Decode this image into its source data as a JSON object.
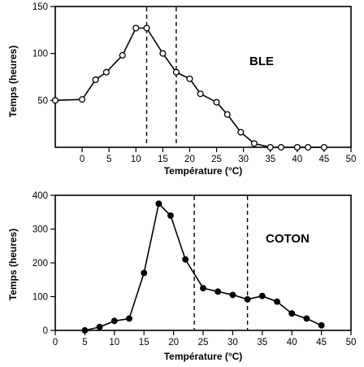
{
  "chart_data": [
    {
      "type": "line",
      "id": "ble",
      "panel_label": "BLE",
      "xlabel": "Température (°C)",
      "ylabel": "Temps (heures)",
      "xlim": [
        -5,
        50
      ],
      "ylim": [
        0,
        150
      ],
      "xticks": [
        0,
        5,
        10,
        15,
        20,
        25,
        30,
        35,
        40,
        45,
        50
      ],
      "yticks": [
        50,
        100,
        150
      ],
      "marker": "open-circle",
      "series": [
        {
          "x": [
            -5,
            0,
            2.5,
            4.5,
            7.5,
            10,
            12,
            15,
            17.5,
            20,
            22,
            25,
            27,
            29.5,
            32,
            35,
            37,
            40,
            42,
            45
          ],
          "y": [
            50,
            51,
            72,
            80,
            98,
            127,
            127,
            100,
            80,
            73,
            57,
            48,
            35,
            16,
            4,
            0,
            0,
            0,
            0,
            0
          ]
        }
      ],
      "vlines": [
        12,
        17.5
      ]
    },
    {
      "type": "line",
      "id": "coton",
      "panel_label": "COTON",
      "xlabel": "Température (°C)",
      "ylabel": "Temps (heures)",
      "xlim": [
        0,
        50
      ],
      "ylim": [
        0,
        400
      ],
      "xticks": [
        0,
        5,
        10,
        15,
        20,
        25,
        30,
        35,
        40,
        45,
        50
      ],
      "yticks": [
        0,
        100,
        200,
        300,
        400
      ],
      "marker": "filled-circle",
      "series": [
        {
          "x": [
            5,
            7.5,
            10,
            12.5,
            15,
            17.5,
            19.5,
            22,
            25,
            27.5,
            30,
            32.5,
            35,
            37.5,
            40,
            42.5,
            45
          ],
          "y": [
            0,
            10,
            28,
            35,
            170,
            375,
            340,
            210,
            125,
            115,
            105,
            92,
            102,
            85,
            50,
            35,
            15
          ]
        }
      ],
      "vlines": [
        23.5,
        32.5
      ]
    }
  ]
}
